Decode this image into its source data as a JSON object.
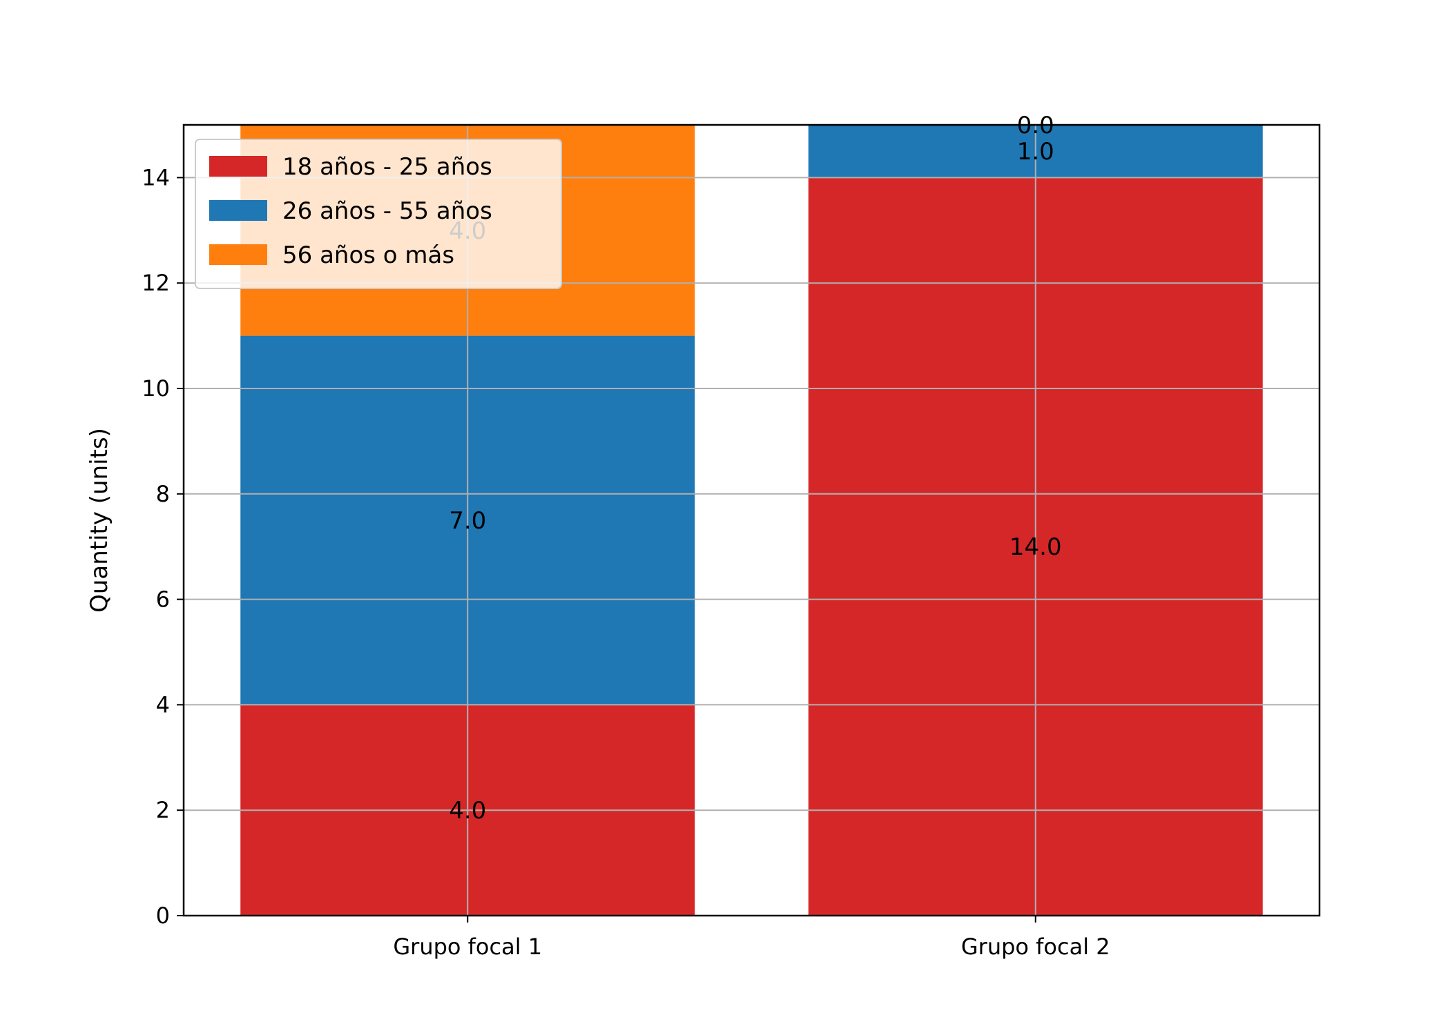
{
  "chart_data": {
    "type": "bar",
    "stacked": true,
    "categories": [
      "Grupo focal 1",
      "Grupo focal 2"
    ],
    "series": [
      {
        "name": "18 años - 25 años",
        "values": [
          4.0,
          14.0
        ],
        "labels": [
          "4.0",
          "14.0"
        ],
        "color": "#d62728"
      },
      {
        "name": "26 años - 55 años",
        "values": [
          7.0,
          1.0
        ],
        "labels": [
          "7.0",
          "1.0"
        ],
        "color": "#1f77b4"
      },
      {
        "name": "56 años o más",
        "values": [
          4.0,
          0.0
        ],
        "labels": [
          "4.0",
          "0.0"
        ],
        "color": "#ff7f0e"
      }
    ],
    "xlabel": "",
    "ylabel": "Quantity (units)",
    "ylim": [
      0,
      15
    ],
    "yticks": [
      "0",
      "2",
      "4",
      "6",
      "8",
      "10",
      "12",
      "14"
    ],
    "grid": true,
    "legend_position": "top-left"
  }
}
